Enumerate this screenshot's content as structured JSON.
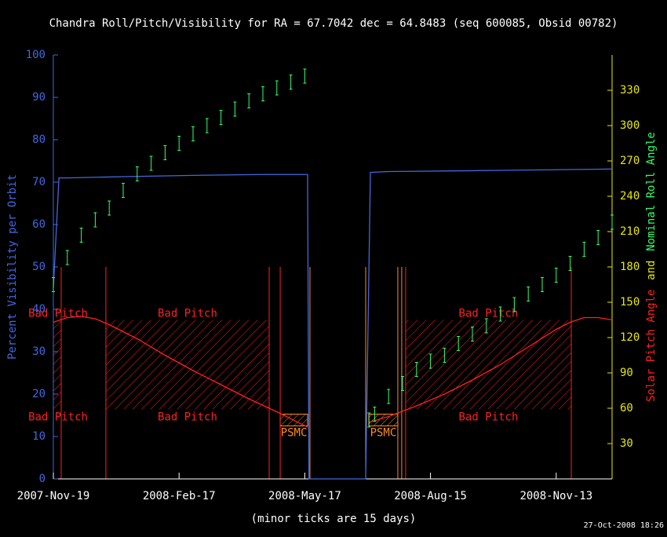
{
  "chart_data": {
    "type": "line",
    "title": "Chandra Roll/Pitch/Visibility for RA = 67.7042 dec = 64.8483 (seq 600085, Obsid 00782)",
    "ylabel": "Percent Visibility per Orbit",
    "y2label_parts": [
      {
        "text": "Solar Pitch Angle",
        "color": "#ff2020"
      },
      {
        "text": "and",
        "color": "#e8e800"
      },
      {
        "text": "Nominal Roll Angle",
        "color": "#33ff66"
      }
    ],
    "xlabel": "(minor ticks are 15 days)",
    "footer": "27-Oct-2008 18:26",
    "xlim": [
      0,
      400
    ],
    "xticks": [
      {
        "value": 0,
        "label": "2007-Nov-19"
      },
      {
        "value": 90,
        "label": "2008-Feb-17"
      },
      {
        "value": 180,
        "label": "2008-May-17"
      },
      {
        "value": 270,
        "label": "2008-Aug-15"
      },
      {
        "value": 360,
        "label": "2008-Nov-13"
      }
    ],
    "ylim": [
      0,
      100
    ],
    "yticks": [
      0,
      10,
      20,
      30,
      40,
      50,
      60,
      70,
      80,
      90,
      100
    ],
    "y2lim": [
      0,
      360
    ],
    "y2ticks": [
      30,
      60,
      90,
      120,
      150,
      180,
      210,
      240,
      270,
      300,
      330
    ],
    "bad_pitch": {
      "label": "Bad Pitch",
      "color": "#ff2020",
      "range": [
        59,
        135
      ],
      "regions": [
        [
          0,
          5.6
        ],
        [
          37.6,
          154.5
        ],
        [
          252.2,
          370.8
        ]
      ]
    },
    "psmc": {
      "label": "PSMC",
      "color": "#ff8c1a",
      "range": [
        45,
        55
      ],
      "regions": [
        [
          162.4,
          182
        ],
        [
          225.8,
          246.6
        ]
      ]
    },
    "constraint_lines": [
      {
        "color": "#ff2020",
        "top": 180,
        "x": [
          5.6,
          37.6,
          154.5,
          162.4,
          252.2,
          370.8
        ]
      },
      {
        "color": "#ff8c1a",
        "top": 180,
        "x": [
          183.7,
          223.6,
          246.6,
          249.4
        ]
      }
    ],
    "series": [
      {
        "color": "#4169e1",
        "axis": "y",
        "x": [
          0,
          4,
          10,
          50,
          100,
          150,
          182,
          183,
          223.6,
          227,
          240,
          300,
          350,
          400
        ],
        "values": [
          45,
          71,
          71,
          71.3,
          71.6,
          71.8,
          71.8,
          0,
          0,
          72.3,
          72.5,
          72.7,
          72.9,
          73.1
        ]
      },
      {
        "color": "#ff2020",
        "axis": "y2",
        "x": [
          0,
          10,
          20,
          30,
          40,
          60,
          80,
          100,
          120,
          140,
          160,
          182,
          200,
          226,
          240,
          260,
          280,
          300,
          320,
          340,
          360,
          370,
          380,
          390,
          400
        ],
        "values": [
          133,
          137,
          138,
          136,
          131,
          119,
          105,
          92,
          80,
          68,
          57,
          44,
          null,
          48,
          53,
          62,
          72,
          84,
          97,
          112,
          127,
          133,
          137,
          137,
          135
        ]
      },
      {
        "color": "#33ff66",
        "axis": "y2",
        "errorbars": true,
        "error": 6,
        "x": [
          0,
          10,
          20,
          30,
          40,
          50,
          60,
          70,
          80,
          90,
          100,
          110,
          120,
          130,
          140,
          150,
          160,
          170,
          180,
          200,
          226,
          230,
          240,
          250,
          260,
          270,
          280,
          290,
          300,
          310,
          320,
          330,
          340,
          350,
          360,
          370,
          380,
          390,
          400
        ],
        "values": [
          165,
          188,
          207,
          220,
          230,
          245,
          259,
          268,
          277,
          285,
          293,
          300,
          307,
          314,
          321,
          327,
          332,
          337,
          342,
          null,
          50,
          55,
          70,
          81,
          93,
          100,
          105,
          115,
          123,
          130,
          140,
          148,
          157,
          165,
          173,
          183,
          195,
          205,
          218
        ]
      }
    ]
  }
}
